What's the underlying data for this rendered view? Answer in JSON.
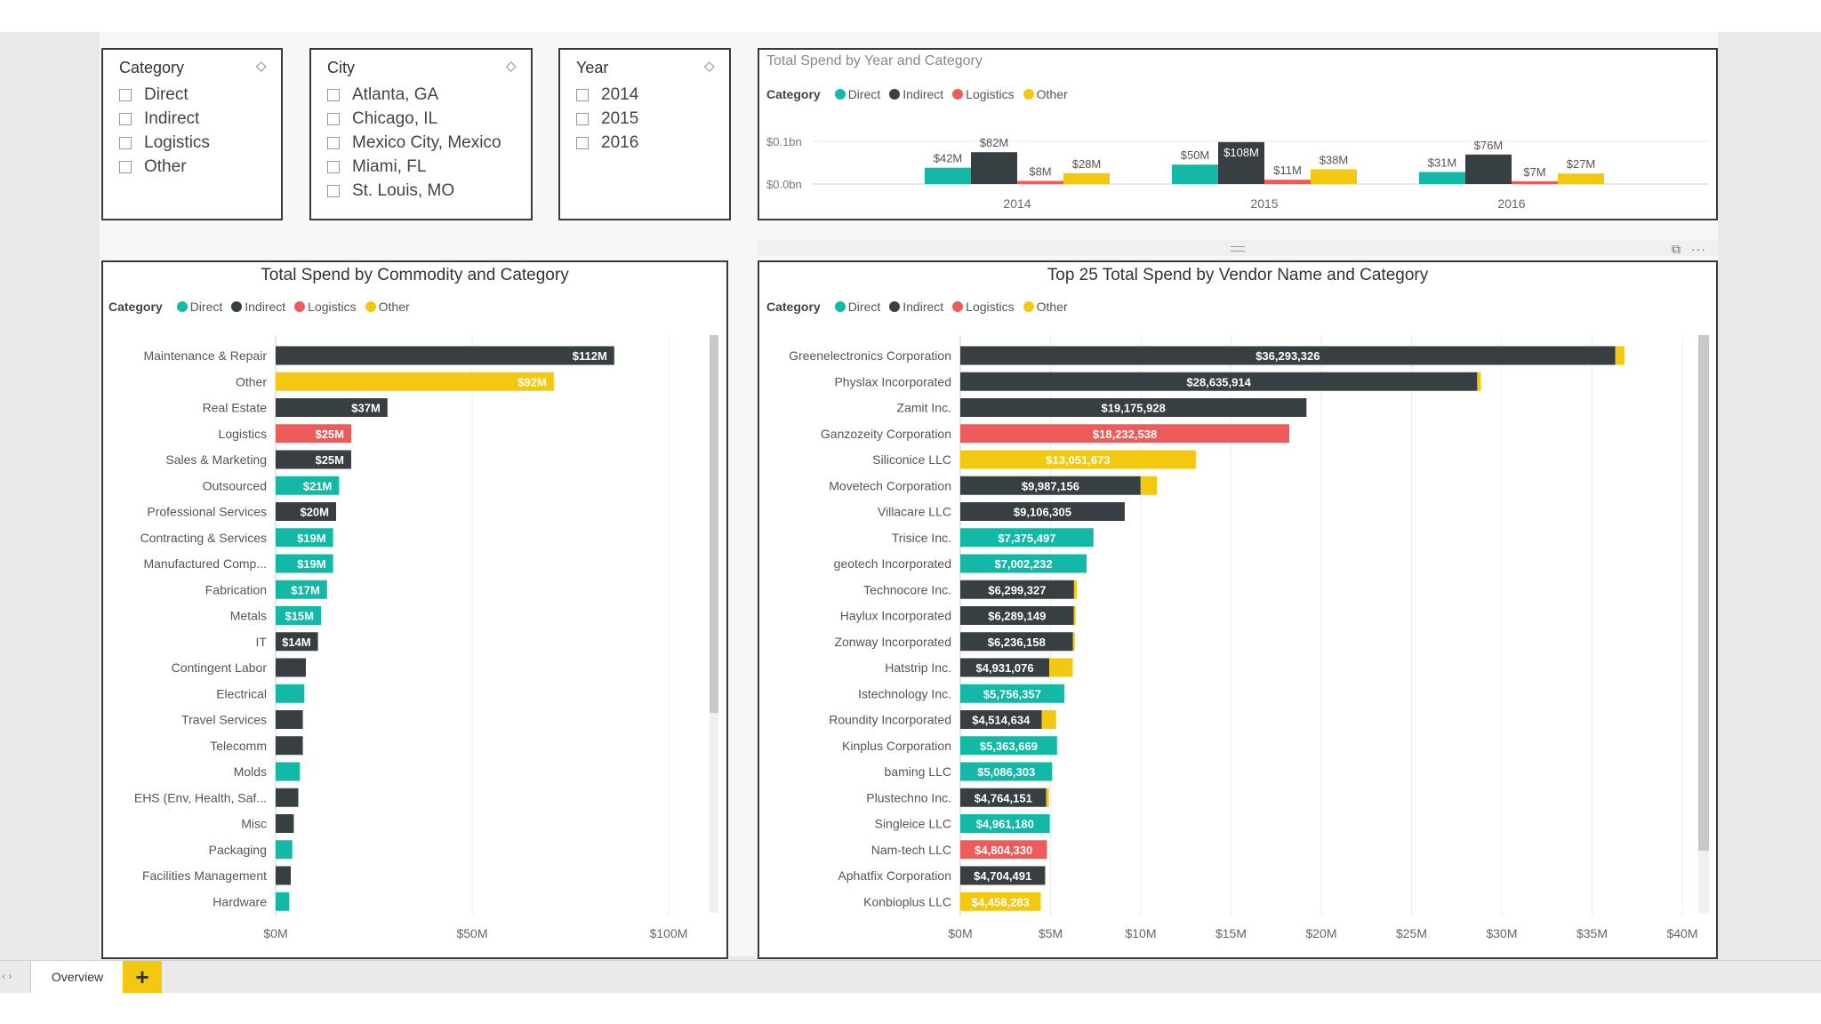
{
  "colors": {
    "Direct": "#14b8a6",
    "Indirect": "#373f43",
    "Logistics": "#ee5b5b",
    "Other": "#f2c811"
  },
  "slicers": [
    {
      "title": "Category",
      "items": [
        "Direct",
        "Indirect",
        "Logistics",
        "Other"
      ]
    },
    {
      "title": "City",
      "items": [
        "Atlanta, GA",
        "Chicago, IL",
        "Mexico City, Mexico",
        "Miami, FL",
        "St. Louis, MO"
      ]
    },
    {
      "title": "Year",
      "items": [
        "2014",
        "2015",
        "2016"
      ]
    }
  ],
  "legend": {
    "label": "Category",
    "items": [
      "Direct",
      "Indirect",
      "Logistics",
      "Other"
    ]
  },
  "year_chart": {
    "title": "Total Spend by Year and Category",
    "y_ticks": [
      "$0.1bn",
      "$0.0bn"
    ]
  },
  "commodity_chart": {
    "title": "Total Spend by Commodity and Category",
    "x_ticks": [
      "$0M",
      "$50M",
      "$100M"
    ]
  },
  "vendor_chart": {
    "title": "Top 25 Total Spend by Vendor Name and Category",
    "x_ticks": [
      "$0M",
      "$5M",
      "$10M",
      "$15M",
      "$20M",
      "$25M",
      "$30M",
      "$35M",
      "$40M"
    ]
  },
  "tabs": {
    "overview": "Overview",
    "add": "+"
  },
  "chart_data": [
    {
      "type": "bar",
      "title": "Total Spend by Year and Category",
      "categories": [
        "2014",
        "2015",
        "2016"
      ],
      "series": [
        {
          "name": "Direct",
          "values": [
            42,
            50,
            31
          ],
          "labels": [
            "$42M",
            "$50M",
            "$31M"
          ]
        },
        {
          "name": "Indirect",
          "values": [
            82,
            108,
            76
          ],
          "labels": [
            "$82M",
            "$108M",
            "$76M"
          ]
        },
        {
          "name": "Logistics",
          "values": [
            8,
            11,
            7
          ],
          "labels": [
            "$8M",
            "$11M",
            "$7M"
          ]
        },
        {
          "name": "Other",
          "values": [
            28,
            38,
            27
          ],
          "labels": [
            "$28M",
            "$38M",
            "$27M"
          ]
        }
      ],
      "ylim": [
        0,
        110
      ]
    },
    {
      "type": "bar",
      "title": "Total Spend by Commodity and Category",
      "xlim": [
        0,
        130
      ],
      "rows": [
        {
          "name": "Maintenance & Repair",
          "segments": [
            {
              "cat": "Indirect",
              "value": 112
            }
          ],
          "label": "$112M"
        },
        {
          "name": "Other",
          "segments": [
            {
              "cat": "Other",
              "value": 92
            }
          ],
          "label": "$92M"
        },
        {
          "name": "Real Estate",
          "segments": [
            {
              "cat": "Indirect",
              "value": 37
            }
          ],
          "label": "$37M"
        },
        {
          "name": "Logistics",
          "segments": [
            {
              "cat": "Logistics",
              "value": 25
            }
          ],
          "label": "$25M"
        },
        {
          "name": "Sales & Marketing",
          "segments": [
            {
              "cat": "Indirect",
              "value": 25
            }
          ],
          "label": "$25M"
        },
        {
          "name": "Outsourced",
          "segments": [
            {
              "cat": "Direct",
              "value": 21
            }
          ],
          "label": "$21M"
        },
        {
          "name": "Professional Services",
          "segments": [
            {
              "cat": "Indirect",
              "value": 20
            }
          ],
          "label": "$20M"
        },
        {
          "name": "Contracting & Services",
          "segments": [
            {
              "cat": "Direct",
              "value": 19
            }
          ],
          "label": "$19M"
        },
        {
          "name": "Manufactured Comp...",
          "segments": [
            {
              "cat": "Direct",
              "value": 19
            }
          ],
          "label": "$19M"
        },
        {
          "name": "Fabrication",
          "segments": [
            {
              "cat": "Direct",
              "value": 17
            }
          ],
          "label": "$17M"
        },
        {
          "name": "Metals",
          "segments": [
            {
              "cat": "Direct",
              "value": 15
            }
          ],
          "label": "$15M"
        },
        {
          "name": "IT",
          "segments": [
            {
              "cat": "Indirect",
              "value": 14
            }
          ],
          "label": "$14M"
        },
        {
          "name": "Contingent Labor",
          "segments": [
            {
              "cat": "Indirect",
              "value": 10
            }
          ],
          "label": ""
        },
        {
          "name": "Electrical",
          "segments": [
            {
              "cat": "Direct",
              "value": 9.5
            }
          ],
          "label": ""
        },
        {
          "name": "Travel Services",
          "segments": [
            {
              "cat": "Indirect",
              "value": 9
            }
          ],
          "label": ""
        },
        {
          "name": "Telecomm",
          "segments": [
            {
              "cat": "Indirect",
              "value": 9
            }
          ],
          "label": ""
        },
        {
          "name": "Molds",
          "segments": [
            {
              "cat": "Direct",
              "value": 8
            }
          ],
          "label": ""
        },
        {
          "name": "EHS (Env, Health, Saf...",
          "segments": [
            {
              "cat": "Indirect",
              "value": 7.5
            }
          ],
          "label": ""
        },
        {
          "name": "Misc",
          "segments": [
            {
              "cat": "Indirect",
              "value": 6
            }
          ],
          "label": ""
        },
        {
          "name": "Packaging",
          "segments": [
            {
              "cat": "Direct",
              "value": 5.5
            }
          ],
          "label": ""
        },
        {
          "name": "Facilities Management",
          "segments": [
            {
              "cat": "Indirect",
              "value": 5
            }
          ],
          "label": ""
        },
        {
          "name": "Hardware",
          "segments": [
            {
              "cat": "Direct",
              "value": 4.5
            }
          ],
          "label": ""
        }
      ]
    },
    {
      "type": "bar",
      "title": "Top 25 Total Spend by Vendor Name and Category",
      "xlim": [
        0,
        40
      ],
      "rows": [
        {
          "name": "Greenelectronics Corporation",
          "segments": [
            {
              "cat": "Indirect",
              "value": 36.29
            },
            {
              "cat": "Other",
              "value": 0.5
            }
          ],
          "label": "$36,293,326"
        },
        {
          "name": "Physlax Incorporated",
          "segments": [
            {
              "cat": "Indirect",
              "value": 28.64
            },
            {
              "cat": "Other",
              "value": 0.2
            }
          ],
          "label": "$28,635,914"
        },
        {
          "name": "Zamit Inc.",
          "segments": [
            {
              "cat": "Indirect",
              "value": 19.18
            }
          ],
          "label": "$19,175,928"
        },
        {
          "name": "Ganzozeity Corporation",
          "segments": [
            {
              "cat": "Logistics",
              "value": 18.23
            }
          ],
          "label": "$18,232,538"
        },
        {
          "name": "Siliconice LLC",
          "segments": [
            {
              "cat": "Other",
              "value": 13.05
            }
          ],
          "label": "$13,051,673"
        },
        {
          "name": "Movetech Corporation",
          "segments": [
            {
              "cat": "Indirect",
              "value": 9.99
            },
            {
              "cat": "Other",
              "value": 0.9
            }
          ],
          "label": "$9,987,156"
        },
        {
          "name": "Villacare LLC",
          "segments": [
            {
              "cat": "Indirect",
              "value": 9.11
            }
          ],
          "label": "$9,106,305"
        },
        {
          "name": "Trisice Inc.",
          "segments": [
            {
              "cat": "Direct",
              "value": 7.38
            }
          ],
          "label": "$7,375,497"
        },
        {
          "name": "geotech Incorporated",
          "segments": [
            {
              "cat": "Direct",
              "value": 7.0
            }
          ],
          "label": "$7,002,232"
        },
        {
          "name": "Technocore Inc.",
          "segments": [
            {
              "cat": "Indirect",
              "value": 6.3
            },
            {
              "cat": "Other",
              "value": 0.15
            }
          ],
          "label": "$6,299,327"
        },
        {
          "name": "Haylux Incorporated",
          "segments": [
            {
              "cat": "Indirect",
              "value": 6.29
            },
            {
              "cat": "Other",
              "value": 0.1
            }
          ],
          "label": "$6,289,149"
        },
        {
          "name": "Zonway Incorporated",
          "segments": [
            {
              "cat": "Indirect",
              "value": 6.24
            },
            {
              "cat": "Other",
              "value": 0.1
            }
          ],
          "label": "$6,236,158"
        },
        {
          "name": "Hatstrip Inc.",
          "segments": [
            {
              "cat": "Indirect",
              "value": 4.93
            },
            {
              "cat": "Other",
              "value": 1.3
            }
          ],
          "label": "$4,931,076"
        },
        {
          "name": "Istechnology Inc.",
          "segments": [
            {
              "cat": "Direct",
              "value": 5.76
            }
          ],
          "label": "$5,756,357"
        },
        {
          "name": "Roundity Incorporated",
          "segments": [
            {
              "cat": "Indirect",
              "value": 4.51
            },
            {
              "cat": "Other",
              "value": 0.8
            }
          ],
          "label": "$4,514,634"
        },
        {
          "name": "Kinplus Corporation",
          "segments": [
            {
              "cat": "Direct",
              "value": 5.36
            }
          ],
          "label": "$5,363,669"
        },
        {
          "name": "baming LLC",
          "segments": [
            {
              "cat": "Direct",
              "value": 5.09
            }
          ],
          "label": "$5,086,303"
        },
        {
          "name": "Plustechno Inc.",
          "segments": [
            {
              "cat": "Indirect",
              "value": 4.76
            },
            {
              "cat": "Other",
              "value": 0.15
            }
          ],
          "label": "$4,764,151"
        },
        {
          "name": "Singleice LLC",
          "segments": [
            {
              "cat": "Direct",
              "value": 4.96
            }
          ],
          "label": "$4,961,180"
        },
        {
          "name": "Nam-tech LLC",
          "segments": [
            {
              "cat": "Logistics",
              "value": 4.8
            }
          ],
          "label": "$4,804,330"
        },
        {
          "name": "Aphatfix Corporation",
          "segments": [
            {
              "cat": "Indirect",
              "value": 4.7
            }
          ],
          "label": "$4,704,491"
        },
        {
          "name": "Konbioplus LLC",
          "segments": [
            {
              "cat": "Other",
              "value": 4.46
            }
          ],
          "label": "$4,458,283"
        }
      ]
    }
  ]
}
